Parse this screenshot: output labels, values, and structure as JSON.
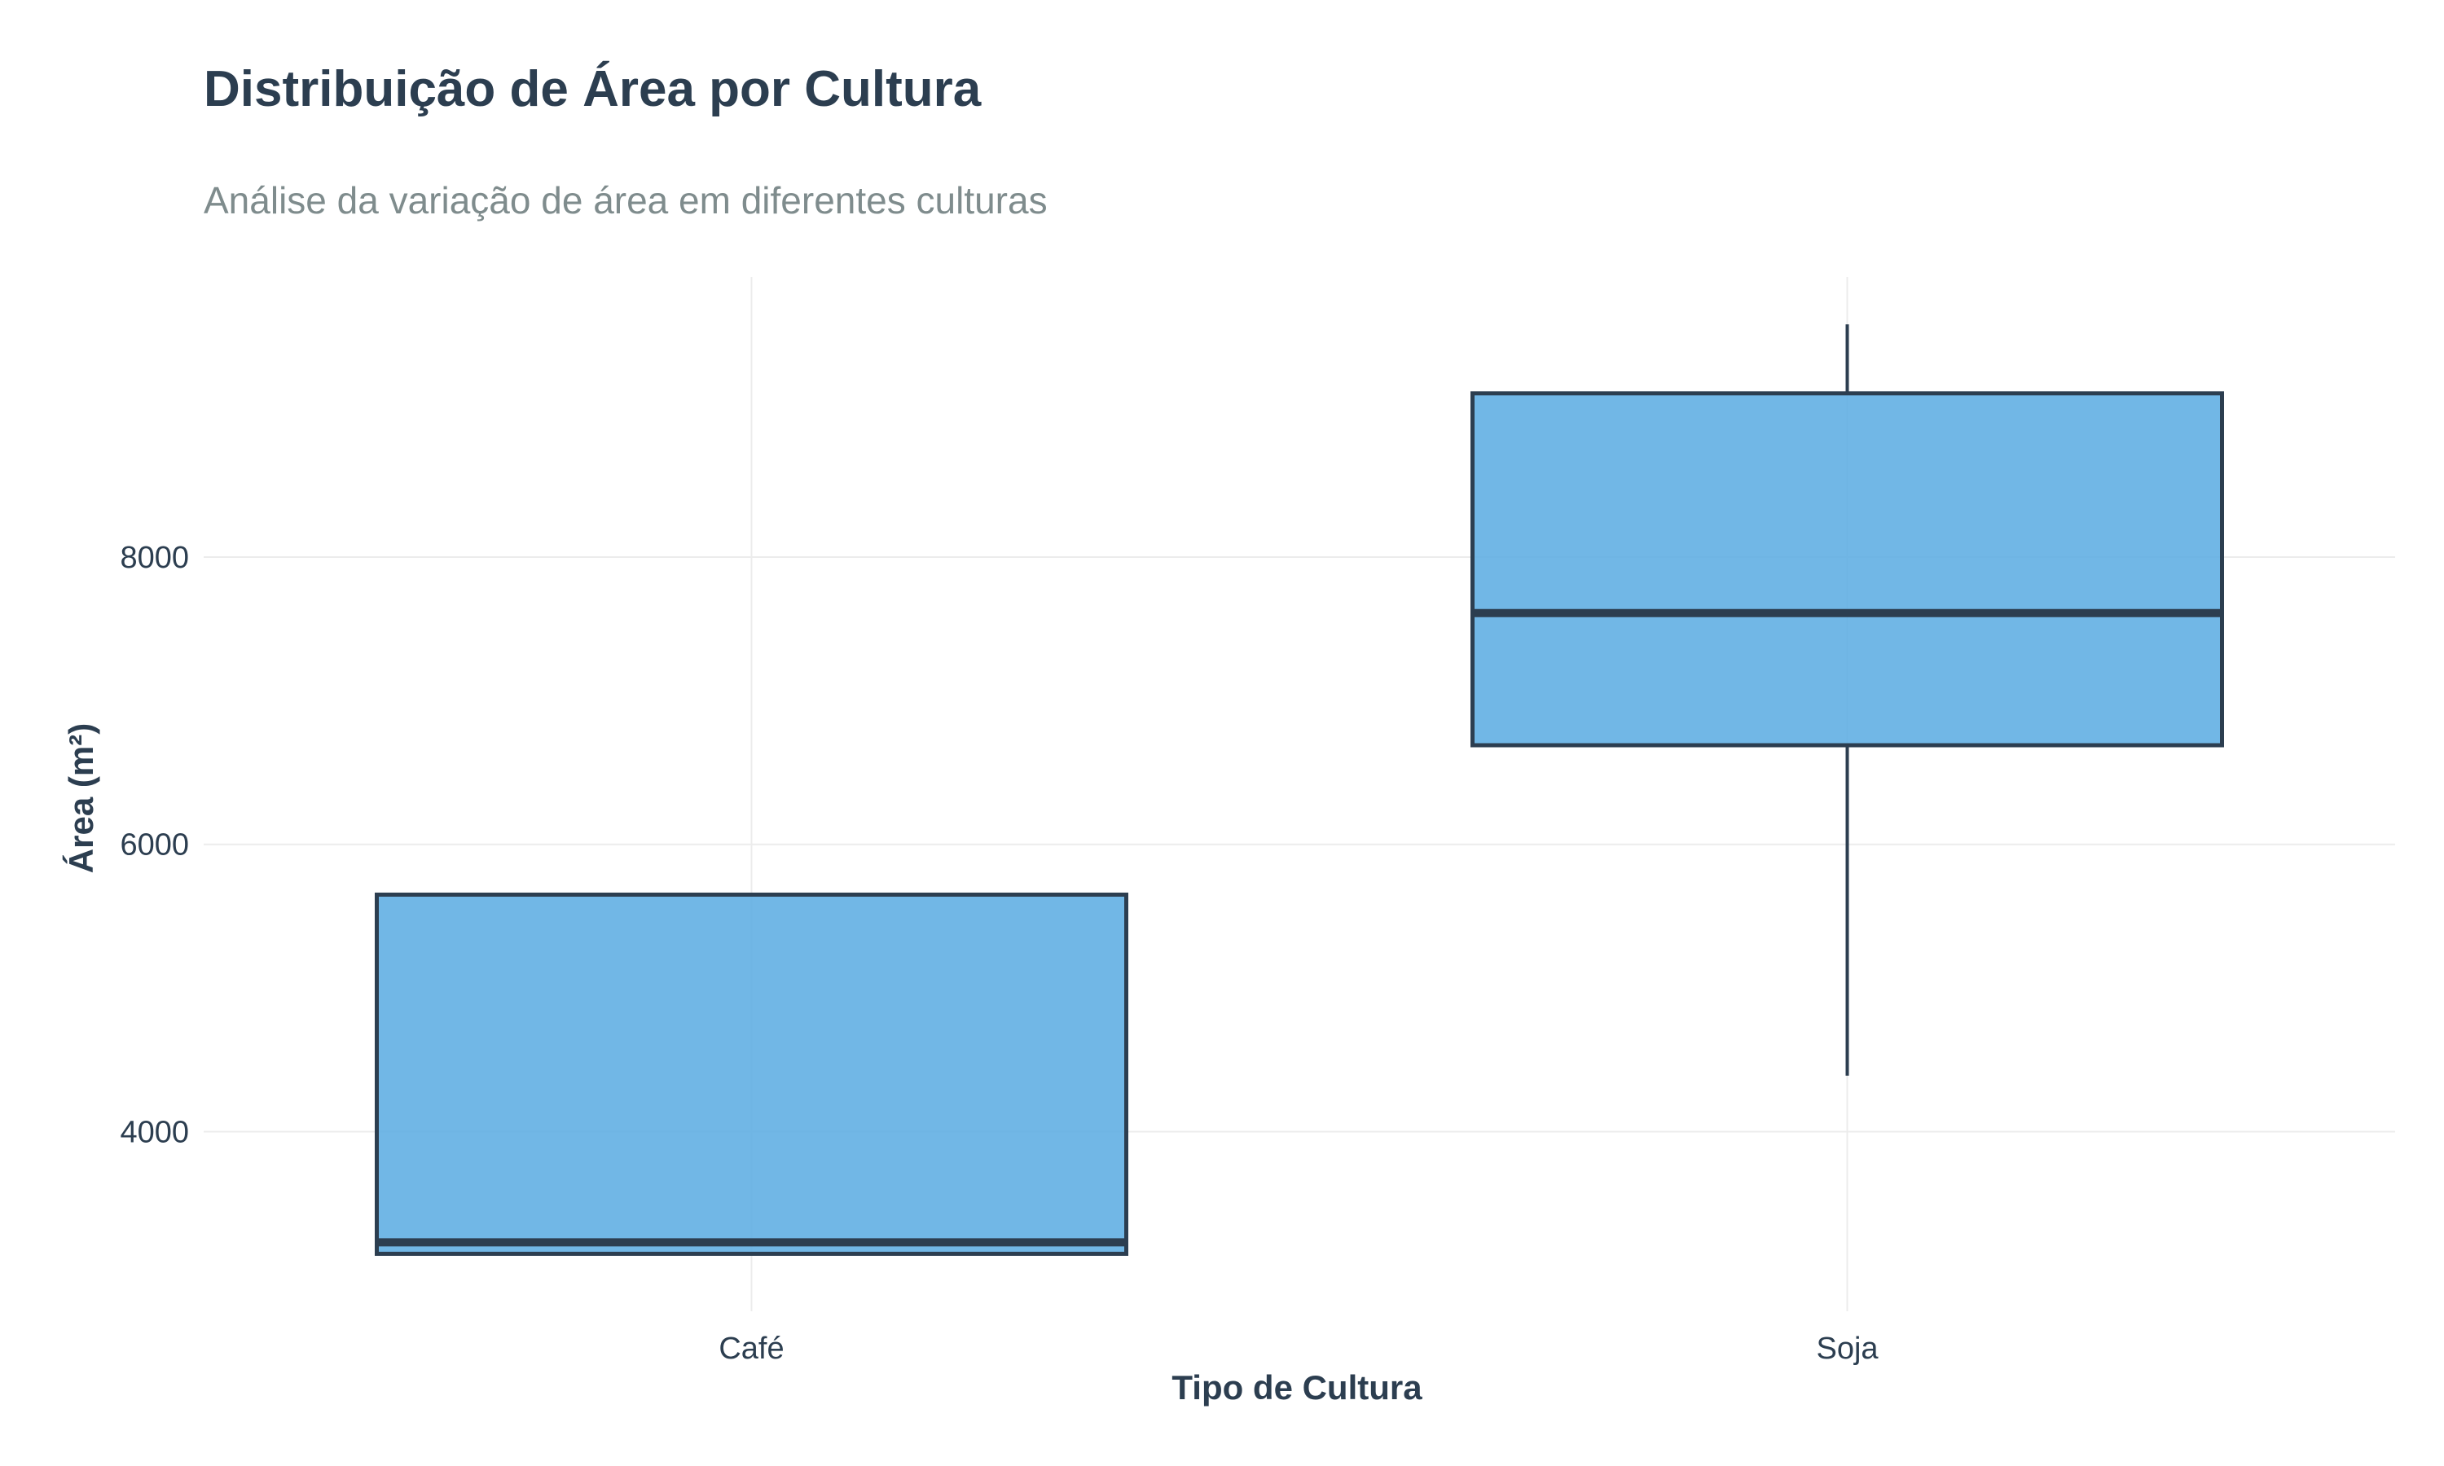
{
  "chart_data": {
    "type": "boxplot",
    "title": "Distribuição de Área por Cultura",
    "subtitle": "Análise da variação de área em diferentes culturas",
    "xlabel": "Tipo de Cultura",
    "ylabel": "Área (m²)",
    "categories": [
      "Café",
      "Soja"
    ],
    "boxes": [
      {
        "category": "Café",
        "min": 3150,
        "q1": 3150,
        "median": 3230,
        "q3": 5650,
        "max": 5650
      },
      {
        "category": "Soja",
        "min": 4390,
        "q1": 6690,
        "median": 7610,
        "q3": 9140,
        "max": 9620
      }
    ],
    "ylim": [
      2750,
      9950
    ],
    "yticks": [
      4000,
      6000,
      8000
    ],
    "grid": true,
    "legend": "none",
    "colors": {
      "box_fill": "#5DADE2",
      "box_stroke": "#2C3E50",
      "title": "#2C3E50",
      "subtitle": "#7F8C8D",
      "axis_text": "#2C3E50",
      "grid": "#ECECEC"
    }
  }
}
